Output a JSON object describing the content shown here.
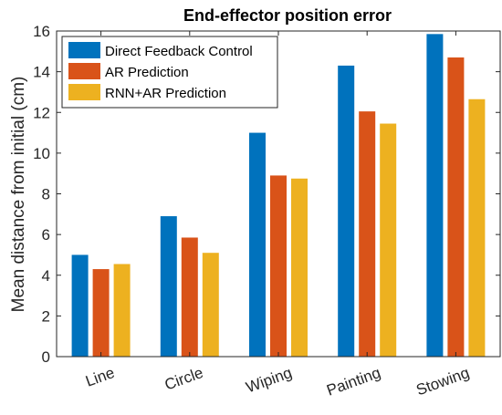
{
  "chart_data": {
    "type": "bar",
    "title": "End-effector position error",
    "xlabel": "",
    "ylabel": "Mean distance from initial (cm)",
    "ylim": [
      0,
      16
    ],
    "yticks": [
      "0",
      "2",
      "4",
      "6",
      "8",
      "10",
      "12",
      "14",
      "16"
    ],
    "categories": [
      "Line",
      "Circle",
      "Wiping",
      "Painting",
      "Stowing"
    ],
    "series": [
      {
        "name": "Direct Feedback Control",
        "color": "#0072BD",
        "values": [
          5.0,
          6.9,
          11.0,
          14.3,
          15.85
        ]
      },
      {
        "name": "AR Prediction",
        "color": "#D95319",
        "values": [
          4.3,
          5.85,
          8.9,
          12.05,
          14.7
        ]
      },
      {
        "name": "RNN+AR Prediction",
        "color": "#EDB120",
        "values": [
          4.55,
          5.1,
          8.75,
          11.45,
          12.65
        ]
      }
    ],
    "legend_position": "top-left",
    "grid": false
  }
}
